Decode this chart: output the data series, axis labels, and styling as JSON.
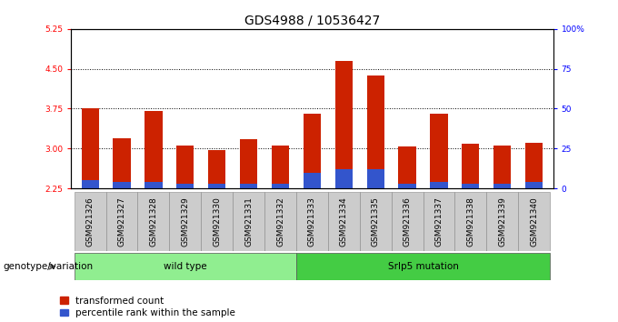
{
  "title": "GDS4988 / 10536427",
  "samples": [
    "GSM921326",
    "GSM921327",
    "GSM921328",
    "GSM921329",
    "GSM921330",
    "GSM921331",
    "GSM921332",
    "GSM921333",
    "GSM921334",
    "GSM921335",
    "GSM921336",
    "GSM921337",
    "GSM921338",
    "GSM921339",
    "GSM921340"
  ],
  "transformed_count": [
    3.75,
    3.2,
    3.7,
    3.05,
    2.97,
    3.18,
    3.06,
    3.65,
    4.65,
    4.38,
    3.04,
    3.65,
    3.09,
    3.06,
    3.1
  ],
  "percentile_rank": [
    5,
    4,
    4,
    3,
    3,
    3,
    3,
    10,
    12,
    12,
    3,
    4,
    3,
    3,
    4
  ],
  "ylim_left": [
    2.25,
    5.25
  ],
  "yticks_left": [
    2.25,
    3.0,
    3.75,
    4.5,
    5.25
  ],
  "yticks_right": [
    0,
    25,
    50,
    75,
    100
  ],
  "y_right_labels": [
    "0",
    "25",
    "50",
    "75",
    "100%"
  ],
  "bar_width": 0.55,
  "bar_color_red": "#cc2200",
  "bar_color_blue": "#3355cc",
  "wild_type_indices": [
    0,
    6
  ],
  "mutation_indices": [
    7,
    14
  ],
  "wild_type_label": "wild type",
  "mutation_label": "Srlp5 mutation",
  "genotype_label": "genotype/variation",
  "legend_red": "transformed count",
  "legend_blue": "percentile rank within the sample",
  "bg_color": "#ffffff",
  "title_fontsize": 10,
  "tick_fontsize": 6.5,
  "label_fontsize": 7.5,
  "legend_fontsize": 7.5,
  "wt_color_light": "#c8f0c8",
  "wt_color": "#90ee90",
  "mut_color": "#44cc44",
  "tick_box_color": "#cccccc",
  "tick_box_edge": "#888888"
}
